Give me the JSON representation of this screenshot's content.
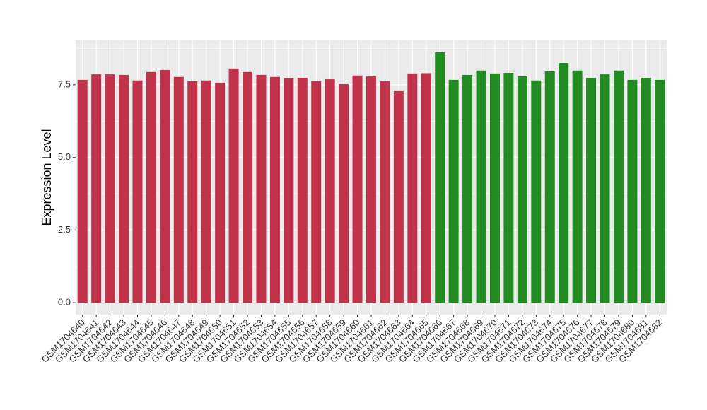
{
  "chart_data": {
    "type": "bar",
    "y_label": "Expression Level",
    "categories": [
      "GSM1704640",
      "GSM1704641",
      "GSM1704642",
      "GSM1704643",
      "GSM1704644",
      "GSM1704645",
      "GSM1704646",
      "GSM1704647",
      "GSM1704648",
      "GSM1704649",
      "GSM1704650",
      "GSM1704651",
      "GSM1704652",
      "GSM1704653",
      "GSM1704654",
      "GSM1704655",
      "GSM1704656",
      "GSM1704657",
      "GSM1704658",
      "GSM1704659",
      "GSM1704660",
      "GSM1704661",
      "GSM1704662",
      "GSM1704663",
      "GSM1704664",
      "GSM1704665",
      "GSM1704666",
      "GSM1704667",
      "GSM1704668",
      "GSM1704669",
      "GSM1704670",
      "GSM1704671",
      "GSM1704672",
      "GSM1704673",
      "GSM1704674",
      "GSM1704675",
      "GSM1704676",
      "GSM1704677",
      "GSM1704678",
      "GSM1704679",
      "GSM1704680",
      "GSM1704681",
      "GSM1704682"
    ],
    "values": [
      7.67,
      7.86,
      7.86,
      7.84,
      7.65,
      7.94,
      8.01,
      7.77,
      7.62,
      7.65,
      7.57,
      8.06,
      7.94,
      7.84,
      7.77,
      7.72,
      7.74,
      7.62,
      7.69,
      7.52,
      7.82,
      7.79,
      7.62,
      7.28,
      7.89,
      7.9,
      8.62,
      7.67,
      7.84,
      7.99,
      7.89,
      7.91,
      7.79,
      7.65,
      7.96,
      8.25,
      7.99,
      7.74,
      7.86,
      7.99,
      7.67,
      7.74,
      7.67
    ],
    "colors": [
      "#c0334a",
      "#c0334a",
      "#c0334a",
      "#c0334a",
      "#c0334a",
      "#c0334a",
      "#c0334a",
      "#c0334a",
      "#c0334a",
      "#c0334a",
      "#c0334a",
      "#c0334a",
      "#c0334a",
      "#c0334a",
      "#c0334a",
      "#c0334a",
      "#c0334a",
      "#c0334a",
      "#c0334a",
      "#c0334a",
      "#c0334a",
      "#c0334a",
      "#c0334a",
      "#c0334a",
      "#c0334a",
      "#c0334a",
      "#228b22",
      "#228b22",
      "#228b22",
      "#228b22",
      "#228b22",
      "#228b22",
      "#228b22",
      "#228b22",
      "#228b22",
      "#228b22",
      "#228b22",
      "#228b22",
      "#228b22",
      "#228b22",
      "#228b22",
      "#228b22",
      "#228b22"
    ],
    "ylim": [
      -0.41,
      9.03
    ],
    "yticks": [
      {
        "value": 0,
        "label": "0.0"
      },
      2.5,
      {
        "value": 5,
        "label": "5.0"
      },
      7.5
    ],
    "grid": true
  }
}
